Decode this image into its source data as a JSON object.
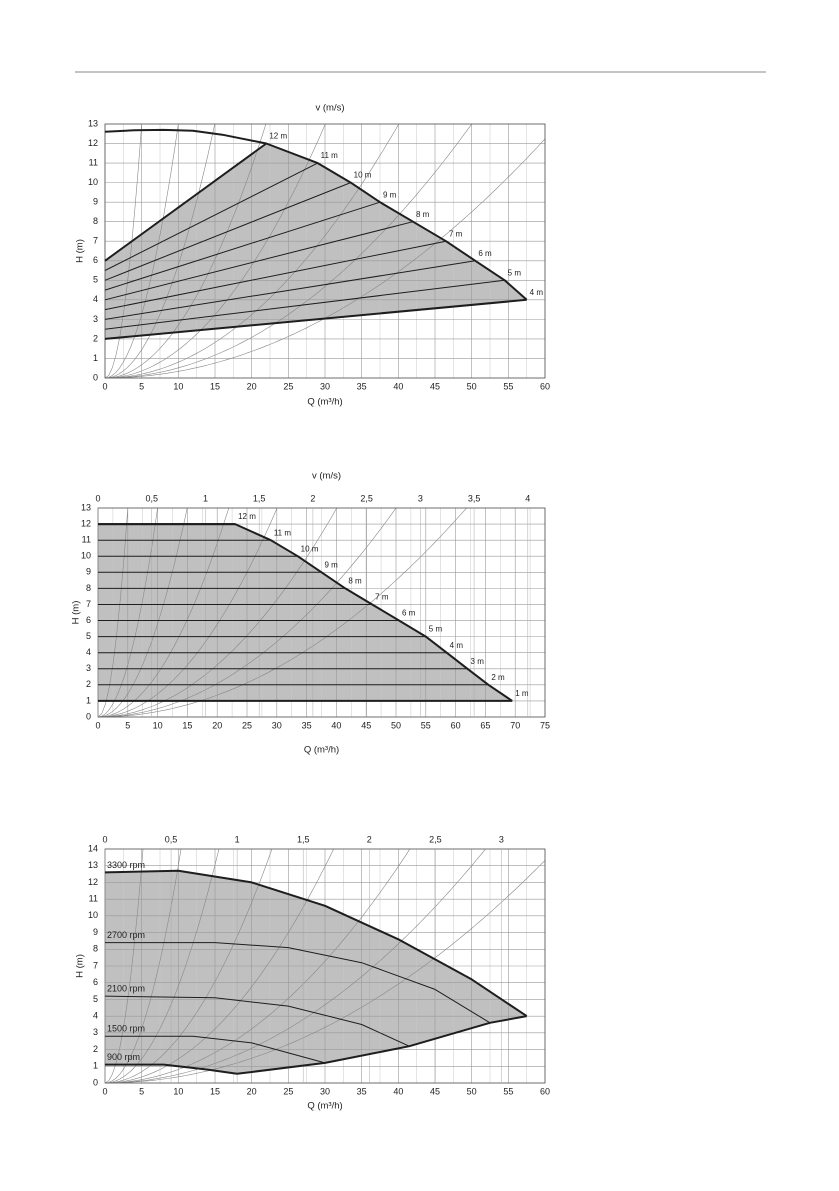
{
  "chart_data": [
    {
      "type": "line",
      "title": "v (m/s)",
      "xlabel": "Q (m³/h)",
      "ylabel": "H (m)",
      "xlim": [
        0,
        60
      ],
      "xticks": [
        0,
        5,
        10,
        15,
        20,
        25,
        30,
        35,
        40,
        45,
        50,
        55,
        60
      ],
      "ylim": [
        0,
        13
      ],
      "yticks": [
        0,
        1,
        2,
        3,
        4,
        5,
        6,
        7,
        8,
        9,
        10,
        11,
        12,
        13
      ],
      "grid": true,
      "minor_xstep": 2.5,
      "fill_color": "#c0c0c0",
      "line_color": "#1e1e1e",
      "system_curves": [
        0.52,
        0.13,
        0.058,
        0.027,
        0.0144,
        0.0081,
        0.0052,
        0.0034
      ],
      "envelope": {
        "x": [
          0,
          4,
          8,
          12,
          16,
          22,
          29,
          33.5,
          37.5,
          42,
          46.5,
          50.5,
          54.5,
          57.5
        ],
        "values": [
          12.6,
          12.68,
          12.7,
          12.65,
          12.45,
          12,
          11,
          10,
          9,
          8,
          7,
          6,
          5,
          4
        ]
      },
      "series": [
        {
          "x": [
            0,
            22
          ],
          "values": [
            6,
            12
          ],
          "value_labels": [
            null,
            "12 m"
          ]
        },
        {
          "x": [
            0,
            29
          ],
          "values": [
            5.5,
            11
          ],
          "value_labels": [
            null,
            "11 m"
          ]
        },
        {
          "x": [
            0,
            33.5
          ],
          "values": [
            5,
            10
          ],
          "value_labels": [
            null,
            "10 m"
          ]
        },
        {
          "x": [
            0,
            37.5
          ],
          "values": [
            4.5,
            9
          ],
          "value_labels": [
            null,
            "9 m"
          ]
        },
        {
          "x": [
            0,
            42
          ],
          "values": [
            4,
            8
          ],
          "value_labels": [
            null,
            "8 m"
          ]
        },
        {
          "x": [
            0,
            46.5
          ],
          "values": [
            3.5,
            7
          ],
          "value_labels": [
            null,
            "7 m"
          ]
        },
        {
          "x": [
            0,
            50.5
          ],
          "values": [
            3,
            6
          ],
          "value_labels": [
            null,
            "6 m"
          ]
        },
        {
          "x": [
            0,
            54.5
          ],
          "values": [
            2.5,
            5
          ],
          "value_labels": [
            null,
            "5 m"
          ]
        },
        {
          "x": [
            0,
            57.5
          ],
          "values": [
            2,
            4
          ],
          "value_labels": [
            null,
            "4 m"
          ]
        }
      ]
    },
    {
      "type": "line",
      "title": "v (m/s)",
      "xlabel": "Q (m³/h)",
      "ylabel": "H (m)",
      "xlim": [
        0,
        75
      ],
      "xticks": [
        0,
        5,
        10,
        15,
        20,
        25,
        30,
        35,
        40,
        45,
        50,
        55,
        60,
        65,
        70,
        75
      ],
      "ylim": [
        0,
        13
      ],
      "yticks": [
        0,
        1,
        2,
        3,
        4,
        5,
        6,
        7,
        8,
        9,
        10,
        11,
        12,
        13
      ],
      "x2lim": [
        0,
        4.16
      ],
      "x2ticks": [
        0,
        {
          "value": 0.5,
          "label": "0,5"
        },
        1,
        {
          "value": 1.5,
          "label": "1,5"
        },
        2,
        {
          "value": 2.5,
          "label": "2,5"
        },
        3,
        {
          "value": 3.5,
          "label": "3,5"
        },
        4
      ],
      "grid": true,
      "minor_xstep": 2.5,
      "fill_color": "#c0c0c0",
      "line_color": "#1e1e1e",
      "system_curves": [
        0.52,
        0.13,
        0.058,
        0.027,
        0.0144,
        0.0081,
        0.0052,
        0.0034
      ],
      "envelope": {
        "x": [
          0,
          23,
          29,
          33.5,
          37.5,
          41.5,
          46,
          50.5,
          55,
          58.5,
          62,
          65.5,
          69.5
        ],
        "values": [
          12,
          12,
          11,
          10,
          9,
          8,
          7,
          6,
          5,
          4,
          3,
          2,
          1
        ]
      },
      "series": [
        {
          "x": [
            0,
            23
          ],
          "values": [
            12,
            12
          ],
          "value_labels": [
            null,
            "12 m"
          ]
        },
        {
          "x": [
            0,
            29
          ],
          "values": [
            11,
            11
          ],
          "value_labels": [
            null,
            "11 m"
          ]
        },
        {
          "x": [
            0,
            33.5
          ],
          "values": [
            10,
            10
          ],
          "value_labels": [
            null,
            "10 m"
          ]
        },
        {
          "x": [
            0,
            37.5
          ],
          "values": [
            9,
            9
          ],
          "value_labels": [
            null,
            "9 m"
          ]
        },
        {
          "x": [
            0,
            41.5
          ],
          "values": [
            8,
            8
          ],
          "value_labels": [
            null,
            "8 m"
          ]
        },
        {
          "x": [
            0,
            46
          ],
          "values": [
            7,
            7
          ],
          "value_labels": [
            null,
            "7 m"
          ]
        },
        {
          "x": [
            0,
            50.5
          ],
          "values": [
            6,
            6
          ],
          "value_labels": [
            null,
            "6 m"
          ]
        },
        {
          "x": [
            0,
            55
          ],
          "values": [
            5,
            5
          ],
          "value_labels": [
            null,
            "5 m"
          ]
        },
        {
          "x": [
            0,
            58.5
          ],
          "values": [
            4,
            4
          ],
          "value_labels": [
            null,
            "4 m"
          ]
        },
        {
          "x": [
            0,
            62
          ],
          "values": [
            3,
            3
          ],
          "value_labels": [
            null,
            "3 m"
          ]
        },
        {
          "x": [
            0,
            65.5
          ],
          "values": [
            2,
            2
          ],
          "value_labels": [
            null,
            "2 m"
          ]
        },
        {
          "x": [
            0,
            69.5
          ],
          "values": [
            1,
            1
          ],
          "value_labels": [
            null,
            "1 m"
          ]
        }
      ]
    },
    {
      "type": "line",
      "xlabel": "Q (m³/h)",
      "ylabel": "H (m)",
      "xlim": [
        0,
        60
      ],
      "xticks": [
        0,
        5,
        10,
        15,
        20,
        25,
        30,
        35,
        40,
        45,
        50,
        55,
        60
      ],
      "ylim": [
        0,
        14
      ],
      "yticks": [
        0,
        1,
        2,
        3,
        4,
        5,
        6,
        7,
        8,
        9,
        10,
        11,
        12,
        13,
        14
      ],
      "x2lim": [
        0,
        3.33
      ],
      "x2ticks": [
        0,
        {
          "value": 0.5,
          "label": "0,5"
        },
        1,
        {
          "value": 1.5,
          "label": "1,5"
        },
        2,
        {
          "value": 2.5,
          "label": "2,5"
        },
        3
      ],
      "grid": true,
      "minor_xstep": 2.5,
      "fill_color": "#c0c0c0",
      "line_color": "#1e1e1e",
      "system_curves": [
        0.52,
        0.13,
        0.058,
        0.027,
        0.0144,
        0.0081,
        0.0052,
        0.0037
      ],
      "envelope": {
        "x": [
          57.5,
          52.5,
          41.5,
          30,
          18
        ],
        "values": [
          4,
          3.6,
          2.2,
          1.2,
          0.55
        ]
      },
      "series": [
        {
          "name": "3300 rpm",
          "x": [
            0,
            10,
            20,
            30,
            40,
            50,
            57.5
          ],
          "values": [
            12.6,
            12.7,
            12,
            10.6,
            8.6,
            6.2,
            4
          ]
        },
        {
          "name": "2700 rpm",
          "x": [
            0,
            15,
            25,
            35,
            45,
            52.5
          ],
          "values": [
            8.4,
            8.4,
            8.1,
            7.2,
            5.6,
            3.6
          ]
        },
        {
          "name": "2100 rpm",
          "x": [
            0,
            15,
            25,
            35,
            41.5
          ],
          "values": [
            5.2,
            5.1,
            4.6,
            3.5,
            2.2
          ]
        },
        {
          "name": "1500 rpm",
          "x": [
            0,
            12,
            20,
            25,
            30
          ],
          "values": [
            2.8,
            2.8,
            2.4,
            1.8,
            1.2
          ]
        },
        {
          "name": "900 rpm",
          "x": [
            0,
            8,
            14,
            18
          ],
          "values": [
            1.1,
            1.1,
            0.8,
            0.55
          ]
        }
      ]
    }
  ]
}
